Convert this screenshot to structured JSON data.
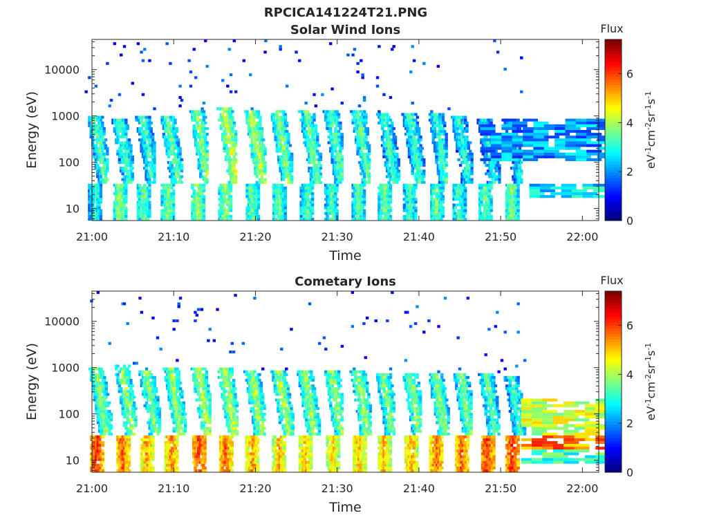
{
  "figure": {
    "title": "RPCICA141224T21.PNG"
  },
  "colormap": {
    "name": "jet",
    "stops": [
      "#00007f",
      "#0000ff",
      "#007fff",
      "#00ffff",
      "#7fff7f",
      "#ffff00",
      "#ff7f00",
      "#ff0000",
      "#7f0000"
    ]
  },
  "chart_data": [
    {
      "type": "heatmap",
      "title": "Solar Wind Ions",
      "xlabel": "Time",
      "ylabel": "Energy (eV)",
      "x_ticks": [
        "21:00",
        "21:10",
        "21:20",
        "21:30",
        "21:40",
        "21:50",
        "22:00"
      ],
      "x_tick_minutes": [
        0,
        10,
        20,
        30,
        40,
        50,
        60
      ],
      "x_range_minutes": [
        0,
        62
      ],
      "y_scale": "log",
      "y_range": [
        5.5,
        45000
      ],
      "y_ticks": [
        10,
        100,
        1000,
        10000
      ],
      "y_tick_labels": [
        "10",
        "100",
        "1000",
        "10000"
      ],
      "colorbar": {
        "title": "Flux",
        "label": "eV-1cm-2sr-1s-1",
        "label_parts": [
          [
            "eV",
            ""
          ],
          [
            "-1",
            "sup"
          ],
          [
            "cm",
            ""
          ],
          [
            "-2",
            "sup"
          ],
          [
            "sr",
            ""
          ],
          [
            "-1",
            "sup"
          ],
          [
            "s",
            ""
          ],
          [
            "-1",
            "sup"
          ]
        ],
        "range": [
          0,
          7.4
        ],
        "ticks": [
          0,
          2,
          4,
          6
        ],
        "tick_labels": [
          "0",
          "2",
          "4",
          "6"
        ]
      },
      "bursts": [
        {
          "t": 0.3,
          "hi": 700,
          "peak": 4.2,
          "low": 3.8
        },
        {
          "t": 3.3,
          "hi": 600,
          "peak": 4.0,
          "low": 4.5
        },
        {
          "t": 6.2,
          "hi": 650,
          "peak": 4.0,
          "low": 4.3
        },
        {
          "t": 9.2,
          "hi": 700,
          "peak": 4.2,
          "low": 4.4
        },
        {
          "t": 12.8,
          "hi": 900,
          "peak": 4.5,
          "low": 4.6
        },
        {
          "t": 16.2,
          "hi": 1000,
          "peak": 5.0,
          "low": 4.5
        },
        {
          "t": 19.5,
          "hi": 900,
          "peak": 4.8,
          "low": 4.3
        },
        {
          "t": 22.7,
          "hi": 850,
          "peak": 4.5,
          "low": 4.2
        },
        {
          "t": 26.2,
          "hi": 900,
          "peak": 4.3,
          "low": 4.0
        },
        {
          "t": 29.2,
          "hi": 900,
          "peak": 4.2,
          "low": 4.0
        },
        {
          "t": 32.5,
          "hi": 900,
          "peak": 4.2,
          "low": 4.1
        },
        {
          "t": 35.7,
          "hi": 800,
          "peak": 4.0,
          "low": 4.3
        },
        {
          "t": 38.8,
          "hi": 800,
          "peak": 4.0,
          "low": 4.0
        },
        {
          "t": 42.0,
          "hi": 800,
          "peak": 4.0,
          "low": 4.2
        },
        {
          "t": 44.8,
          "hi": 700,
          "peak": 3.8,
          "low": 4.0
        },
        {
          "t": 48.0,
          "hi": 600,
          "peak": 3.6,
          "low": 4.2
        },
        {
          "t": 51.2,
          "hi": 600,
          "peak": 3.5,
          "low": 4.4
        }
      ],
      "blocks": [
        {
          "t0": 47.5,
          "t1": 62,
          "e0": 100,
          "e1": 800,
          "val": 2.0
        },
        {
          "t0": 53.5,
          "t1": 62,
          "e0": 16,
          "e1": 32,
          "val": 2.6
        }
      ]
    },
    {
      "type": "heatmap",
      "title": "Cometary Ions",
      "xlabel": "Time",
      "ylabel": "Energy (eV)",
      "x_ticks": [
        "21:00",
        "21:10",
        "21:20",
        "21:30",
        "21:40",
        "21:50",
        "22:00"
      ],
      "x_tick_minutes": [
        0,
        10,
        20,
        30,
        40,
        50,
        60
      ],
      "x_range_minutes": [
        0,
        62
      ],
      "y_scale": "log",
      "y_range": [
        5.5,
        45000
      ],
      "y_ticks": [
        10,
        100,
        1000,
        10000
      ],
      "y_tick_labels": [
        "10",
        "100",
        "1000",
        "10000"
      ],
      "colorbar": {
        "title": "Flux",
        "label": "eV-1cm-2sr-1s-1",
        "label_parts": [
          [
            "eV",
            ""
          ],
          [
            "-1",
            "sup"
          ],
          [
            "cm",
            ""
          ],
          [
            "-2",
            "sup"
          ],
          [
            "sr",
            ""
          ],
          [
            "-1",
            "sup"
          ],
          [
            "s",
            ""
          ],
          [
            "-1",
            "sup"
          ]
        ],
        "range": [
          0,
          7.4
        ],
        "ticks": [
          0,
          2,
          4,
          6
        ],
        "tick_labels": [
          "0",
          "2",
          "4",
          "6"
        ]
      },
      "bursts": [
        {
          "t": 0.5,
          "hi": 700,
          "peak": 4.5,
          "low": 6.8
        },
        {
          "t": 3.6,
          "hi": 800,
          "peak": 4.6,
          "low": 6.5
        },
        {
          "t": 6.6,
          "hi": 600,
          "peak": 4.5,
          "low": 6.0
        },
        {
          "t": 9.6,
          "hi": 700,
          "peak": 4.6,
          "low": 6.2
        },
        {
          "t": 13.0,
          "hi": 700,
          "peak": 4.8,
          "low": 6.7
        },
        {
          "t": 16.2,
          "hi": 650,
          "peak": 4.8,
          "low": 6.4
        },
        {
          "t": 19.5,
          "hi": 600,
          "peak": 4.7,
          "low": 6.0
        },
        {
          "t": 22.8,
          "hi": 600,
          "peak": 4.7,
          "low": 5.8
        },
        {
          "t": 26.0,
          "hi": 550,
          "peak": 4.6,
          "low": 5.8
        },
        {
          "t": 29.3,
          "hi": 550,
          "peak": 4.6,
          "low": 5.6
        },
        {
          "t": 32.5,
          "hi": 550,
          "peak": 4.6,
          "low": 5.8
        },
        {
          "t": 35.6,
          "hi": 500,
          "peak": 4.5,
          "low": 5.8
        },
        {
          "t": 38.9,
          "hi": 500,
          "peak": 4.5,
          "low": 5.9
        },
        {
          "t": 42.0,
          "hi": 500,
          "peak": 4.5,
          "low": 6.4
        },
        {
          "t": 45.1,
          "hi": 500,
          "peak": 4.4,
          "low": 6.5
        },
        {
          "t": 48.2,
          "hi": 500,
          "peak": 4.2,
          "low": 6.8
        },
        {
          "t": 51.3,
          "hi": 450,
          "peak": 4.0,
          "low": 6.8
        }
      ],
      "blocks": [
        {
          "t0": 52.5,
          "t1": 62,
          "e0": 30,
          "e1": 200,
          "val": 4.2
        },
        {
          "t0": 52.5,
          "t1": 62,
          "e0": 16,
          "e1": 30,
          "val": 5.6
        },
        {
          "t0": 52.5,
          "t1": 62,
          "e0": 8,
          "e1": 16,
          "val": 3.2
        }
      ]
    }
  ]
}
